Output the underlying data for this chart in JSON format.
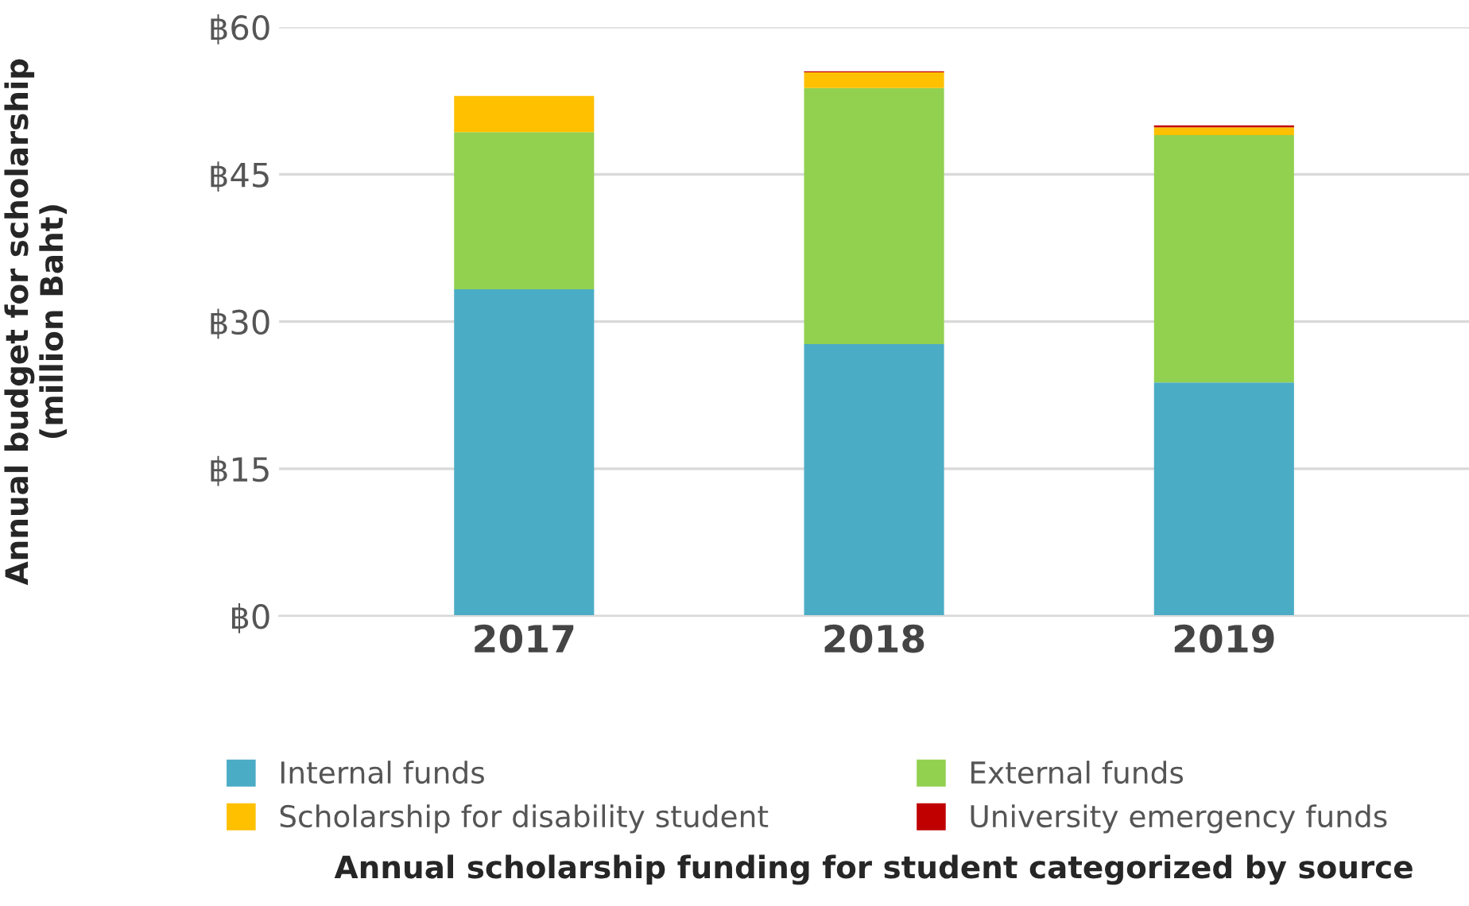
{
  "chart_data": {
    "type": "bar",
    "stacked": true,
    "title": "Annual scholarship funding for student categorized by source",
    "ylabel": "Annual budget for scholarship\n(million Baht)",
    "categories": [
      "2017",
      "2018",
      "2019"
    ],
    "series": [
      {
        "name": "Internal funds",
        "color": "#4bacc6",
        "values": [
          33.3,
          27.7,
          23.8
        ]
      },
      {
        "name": "External funds",
        "color": "#92d050",
        "values": [
          16.0,
          26.1,
          25.2
        ]
      },
      {
        "name": "Scholarship for disability student",
        "color": "#ffc000",
        "values": [
          3.7,
          1.6,
          0.8
        ]
      },
      {
        "name": "University emergency funds",
        "color": "#c00000",
        "values": [
          null,
          0.1,
          0.2
        ]
      }
    ],
    "ylim": [
      0,
      60
    ],
    "yticks": [
      {
        "value": 0,
        "label": "฿0"
      },
      {
        "value": 15,
        "label": "฿15"
      },
      {
        "value": 30,
        "label": "฿30"
      },
      {
        "value": 45,
        "label": "฿45"
      },
      {
        "value": 60,
        "label": "฿60"
      }
    ],
    "grid": "y",
    "legend": "bottom"
  }
}
